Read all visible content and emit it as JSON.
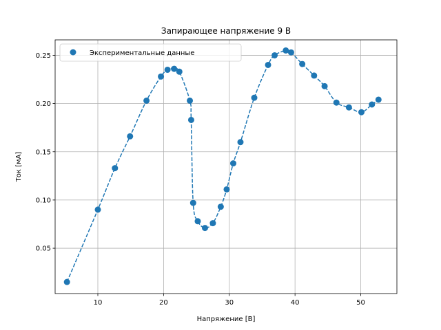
{
  "chart_data": {
    "type": "scatter",
    "title": "Запирающее напряжение 9 В",
    "xlabel": "Напряжение [В]",
    "ylabel": "Ток [мА]",
    "xlim": [
      3.5,
      55.5
    ],
    "ylim": [
      0.003,
      0.266
    ],
    "xticks": [
      10,
      20,
      30,
      40,
      50
    ],
    "yticks": [
      0.05,
      0.1,
      0.15,
      0.2,
      0.25
    ],
    "xtick_labels": [
      "10",
      "20",
      "30",
      "40",
      "50"
    ],
    "ytick_labels": [
      "0.05",
      "0.10",
      "0.15",
      "0.20",
      "0.25"
    ],
    "grid": true,
    "legend": {
      "position": "top-left",
      "entries": [
        "Экспериментальные данные"
      ]
    },
    "colors": {
      "series": "#1f77b4",
      "grid": "#b0b0b0",
      "axes": "#000000"
    },
    "series": [
      {
        "name": "Экспериментальные данные",
        "marker": "circle",
        "line_style": "dashed",
        "x": [
          5.3,
          10.0,
          12.6,
          14.9,
          17.4,
          19.6,
          20.6,
          21.6,
          22.4,
          24.0,
          24.2,
          24.5,
          25.2,
          26.3,
          27.5,
          28.7,
          29.6,
          30.6,
          31.7,
          33.8,
          35.9,
          36.9,
          38.6,
          39.4,
          41.1,
          42.9,
          44.5,
          46.3,
          48.2,
          50.1,
          51.7,
          52.7
        ],
        "y": [
          0.015,
          0.09,
          0.133,
          0.166,
          0.203,
          0.228,
          0.235,
          0.236,
          0.233,
          0.203,
          0.183,
          0.097,
          0.078,
          0.071,
          0.076,
          0.093,
          0.111,
          0.138,
          0.16,
          0.206,
          0.24,
          0.25,
          0.255,
          0.253,
          0.241,
          0.229,
          0.218,
          0.201,
          0.196,
          0.191,
          0.199,
          0.204
        ]
      }
    ]
  }
}
